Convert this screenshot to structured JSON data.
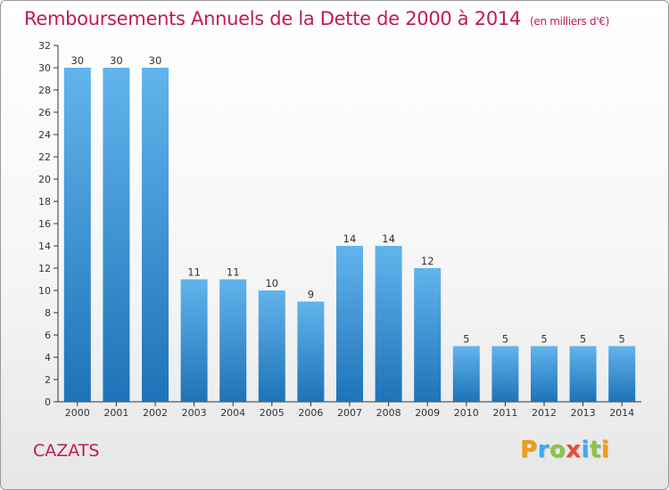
{
  "title": "Remboursements Annuels de la Dette de 2000 à 2014",
  "unit_note": "(en milliers d'€)",
  "commune": "CAZATS",
  "brand": {
    "letters": [
      {
        "ch": "P",
        "color": "#f39c12"
      },
      {
        "ch": "r",
        "color": "#3fa9f5"
      },
      {
        "ch": "o",
        "color": "#8cc63f"
      },
      {
        "ch": "x",
        "color": "#e74c3c"
      },
      {
        "ch": "i",
        "color": "#3fa9f5"
      },
      {
        "ch": "t",
        "color": "#8cc63f"
      },
      {
        "ch": "i",
        "color": "#f39c12"
      }
    ]
  },
  "colors": {
    "accent": "#c2185b",
    "bar_top": "#62b4ec",
    "bar_bottom": "#1e73b8"
  },
  "chart_data": {
    "type": "bar",
    "categories": [
      "2000",
      "2001",
      "2002",
      "2003",
      "2004",
      "2005",
      "2006",
      "2007",
      "2008",
      "2009",
      "2010",
      "2011",
      "2012",
      "2013",
      "2014"
    ],
    "values": [
      30,
      30,
      30,
      11,
      11,
      10,
      9,
      14,
      14,
      12,
      5,
      5,
      5,
      5,
      5
    ],
    "ylim": [
      0,
      32
    ],
    "yticks": [
      0,
      2,
      4,
      6,
      8,
      10,
      12,
      14,
      16,
      18,
      20,
      22,
      24,
      26,
      28,
      30,
      32
    ],
    "grid": false
  }
}
